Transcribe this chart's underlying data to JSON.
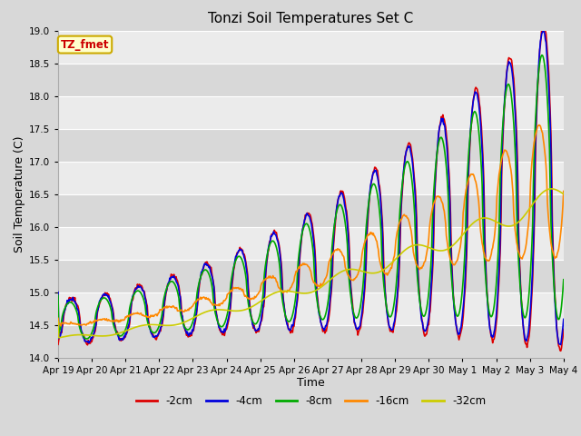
{
  "title": "Tonzi Soil Temperatures Set C",
  "xlabel": "Time",
  "ylabel": "Soil Temperature (C)",
  "ylim": [
    14.0,
    19.0
  ],
  "yticks": [
    14.0,
    14.5,
    15.0,
    15.5,
    16.0,
    16.5,
    17.0,
    17.5,
    18.0,
    18.5,
    19.0
  ],
  "xtick_labels": [
    "Apr 19",
    "Apr 20",
    "Apr 21",
    "Apr 22",
    "Apr 23",
    "Apr 24",
    "Apr 25",
    "Apr 26",
    "Apr 27",
    "Apr 28",
    "Apr 29",
    "Apr 30",
    "May 1",
    "May 2",
    "May 3",
    "May 4"
  ],
  "series_labels": [
    "-2cm",
    "-4cm",
    "-8cm",
    "-16cm",
    "-32cm"
  ],
  "series_colors": [
    "#dd0000",
    "#0000dd",
    "#00aa00",
    "#ff8800",
    "#cccc00"
  ],
  "line_width": 1.2,
  "legend_label": "TZ_fmet",
  "legend_text_color": "#cc0000",
  "legend_bg": "#ffffcc",
  "legend_border_color": "#ccaa00",
  "plot_bg_light": "#ebebeb",
  "plot_bg_dark": "#d8d8d8",
  "fig_bg": "#d8d8d8",
  "grid_color": "#ffffff",
  "title_fontsize": 11,
  "tick_fontsize": 7.5,
  "label_fontsize": 9
}
